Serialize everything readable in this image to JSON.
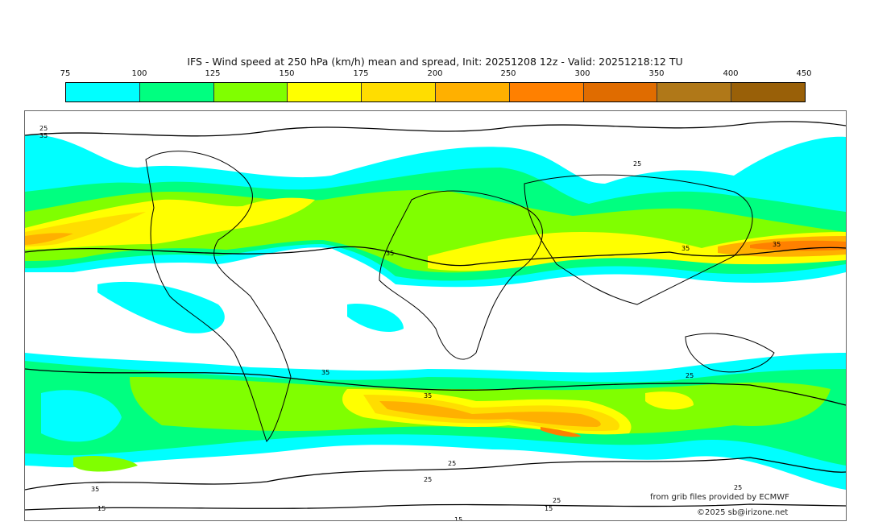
{
  "title": "IFS - Wind speed at 250 hPa (km/h) mean and spread, Init: 20251208 12z - Valid: 20251218:12 TU",
  "colorbar": {
    "ticks": [
      "75",
      "100",
      "125",
      "150",
      "175",
      "200",
      "250",
      "300",
      "350",
      "400",
      "450"
    ],
    "colors": [
      "#00ffff",
      "#00ff80",
      "#80ff00",
      "#ffff00",
      "#ffdd00",
      "#ffb000",
      "#ff8000",
      "#e06c00",
      "#b07818",
      "#996008"
    ]
  },
  "contour_labels": [
    "25",
    "35",
    "35",
    "25",
    "35",
    "35",
    "35",
    "25",
    "35",
    "25",
    "35",
    "25",
    "15",
    "15",
    "25",
    "25",
    "15"
  ],
  "credits": {
    "source": "from grib files provided by ECMWF",
    "copyright": "©2025 sb@irizone.net"
  }
}
